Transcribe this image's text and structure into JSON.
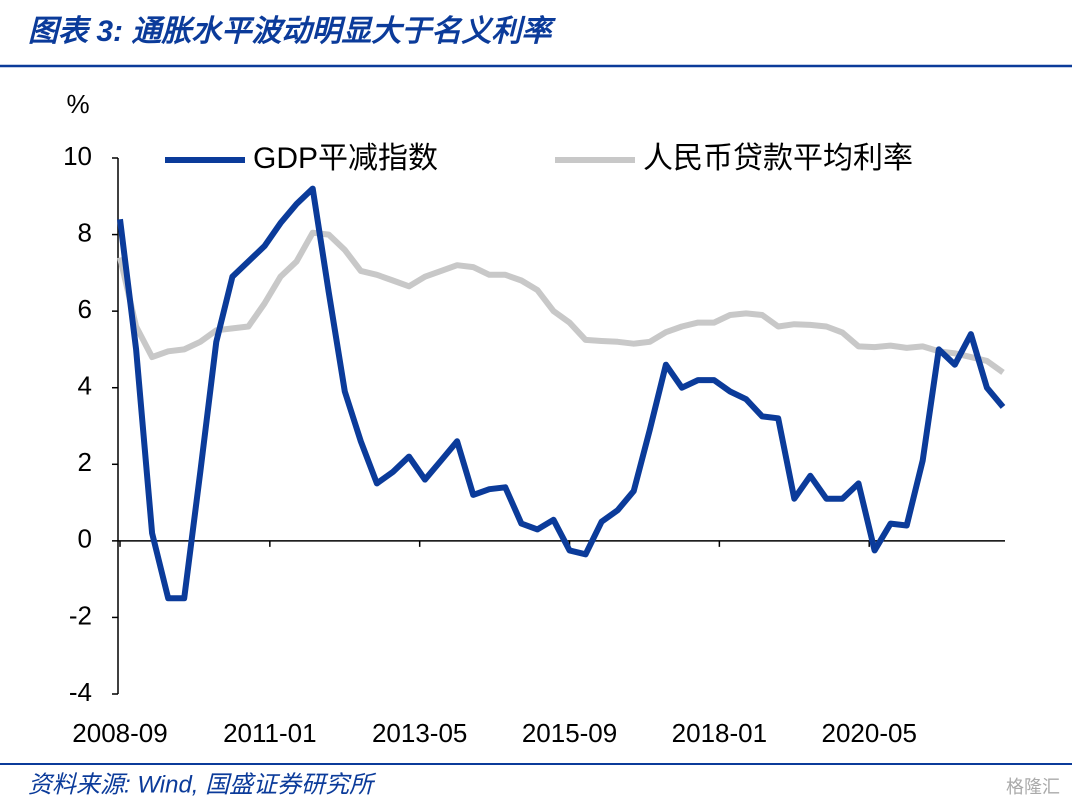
{
  "header": {
    "title": "图表 3:  通胀水平波动明显大于名义利率"
  },
  "chart_data": {
    "type": "line",
    "y_unit_label": "%",
    "x": [
      "2008-09",
      "2008-12",
      "2009-03",
      "2009-06",
      "2009-09",
      "2009-12",
      "2010-03",
      "2010-06",
      "2010-09",
      "2010-12",
      "2011-03",
      "2011-06",
      "2011-09",
      "2011-12",
      "2012-03",
      "2012-06",
      "2012-09",
      "2012-12",
      "2013-03",
      "2013-06",
      "2013-09",
      "2013-12",
      "2014-03",
      "2014-06",
      "2014-09",
      "2014-12",
      "2015-03",
      "2015-06",
      "2015-09",
      "2015-12",
      "2016-03",
      "2016-06",
      "2016-09",
      "2016-12",
      "2017-03",
      "2017-06",
      "2017-09",
      "2017-12",
      "2018-03",
      "2018-06",
      "2018-09",
      "2018-12",
      "2019-03",
      "2019-06",
      "2019-09",
      "2019-12",
      "2020-03",
      "2020-06",
      "2020-09",
      "2020-12",
      "2021-03",
      "2021-06",
      "2021-09",
      "2021-12",
      "2022-03",
      "2022-06"
    ],
    "series": [
      {
        "name": "GDP平减指数",
        "color": "#0b3b9a",
        "values": [
          8.4,
          5.0,
          0.2,
          -1.5,
          -1.5,
          1.8,
          5.2,
          6.9,
          7.3,
          7.7,
          8.3,
          8.8,
          9.2,
          6.5,
          3.9,
          2.6,
          1.5,
          1.8,
          2.2,
          1.6,
          2.1,
          2.6,
          1.2,
          1.35,
          1.4,
          0.45,
          0.3,
          0.55,
          -0.25,
          -0.35,
          0.5,
          0.8,
          1.3,
          2.9,
          4.6,
          4.0,
          4.2,
          4.2,
          3.9,
          3.7,
          3.25,
          3.2,
          1.1,
          1.7,
          1.1,
          1.1,
          1.5,
          -0.25,
          0.45,
          0.4,
          2.1,
          5.0,
          4.6,
          5.4,
          4.0,
          3.5
        ]
      },
      {
        "name": "人民币贷款平均利率",
        "color": "#c8c8c8",
        "values": [
          7.4,
          5.6,
          4.8,
          4.95,
          5.0,
          5.2,
          5.5,
          5.55,
          5.6,
          6.2,
          6.9,
          7.3,
          8.05,
          8.0,
          7.6,
          7.05,
          6.95,
          6.8,
          6.65,
          6.9,
          7.05,
          7.2,
          7.15,
          6.95,
          6.95,
          6.8,
          6.55,
          6.0,
          5.7,
          5.25,
          5.22,
          5.2,
          5.15,
          5.2,
          5.45,
          5.6,
          5.7,
          5.7,
          5.9,
          5.94,
          5.9,
          5.6,
          5.66,
          5.64,
          5.6,
          5.44,
          5.08,
          5.06,
          5.1,
          5.04,
          5.08,
          4.95,
          4.9,
          4.8,
          4.7,
          4.4
        ]
      }
    ],
    "xlim": [
      "2008-09",
      "2022-06"
    ],
    "xticks": [
      "2008-09",
      "2011-01",
      "2013-05",
      "2015-09",
      "2018-01",
      "2020-05"
    ],
    "ylim": [
      -4,
      10
    ],
    "yticks": [
      -4,
      -2,
      0,
      2,
      4,
      6,
      8,
      10
    ],
    "legend": "top"
  },
  "footer": {
    "source": "资料来源:  Wind,  国盛证券研究所",
    "watermark": "格隆汇"
  }
}
